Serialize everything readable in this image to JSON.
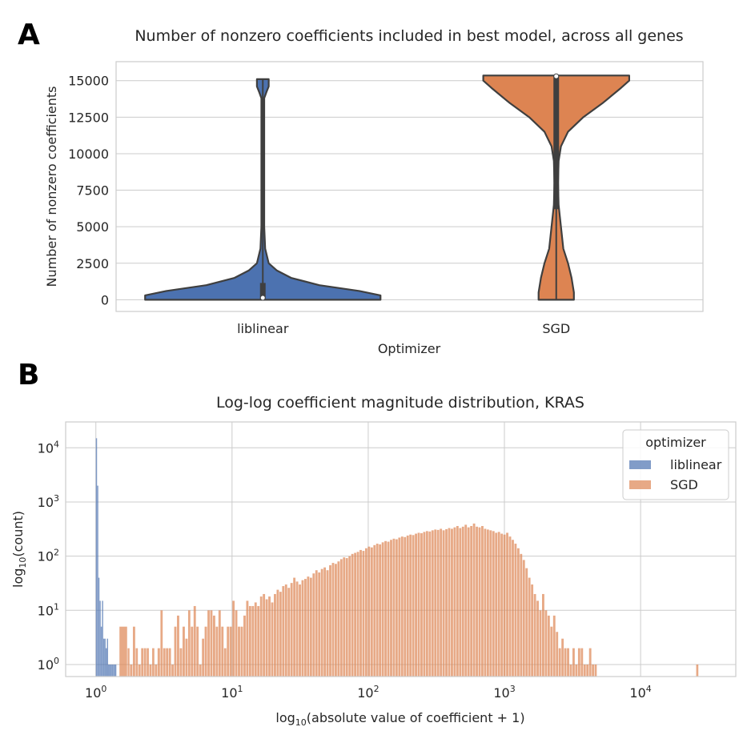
{
  "chart_data": [
    {
      "panel": "A",
      "type": "violin",
      "title": "Number of nonzero coefficients included in best model, across all genes",
      "xlabel": "Optimizer",
      "ylabel": "Number of nonzero coefficients",
      "categories": [
        "liblinear",
        "SGD"
      ],
      "ylim": [
        -800,
        16300
      ],
      "yticks": [
        0,
        2500,
        5000,
        7500,
        10000,
        12500,
        15000
      ],
      "grid": true,
      "colors": {
        "liblinear": "#4c72b0",
        "SGD": "#dd8452"
      },
      "series": [
        {
          "name": "liblinear",
          "range": [
            0,
            15100
          ],
          "median": 130,
          "q1": 60,
          "q3": 1150,
          "density_profile": [
            [
              0,
              1.0
            ],
            [
              300,
              1.0
            ],
            [
              600,
              0.82
            ],
            [
              1000,
              0.48
            ],
            [
              1500,
              0.24
            ],
            [
              2000,
              0.12
            ],
            [
              2500,
              0.05
            ],
            [
              3500,
              0.02
            ],
            [
              5000,
              0.012
            ],
            [
              8000,
              0.012
            ],
            [
              12000,
              0.012
            ],
            [
              13800,
              0.012
            ],
            [
              14200,
              0.03
            ],
            [
              14600,
              0.05
            ],
            [
              15000,
              0.05
            ],
            [
              15100,
              0.05
            ]
          ]
        },
        {
          "name": "SGD",
          "range": [
            0,
            15350
          ],
          "median": 15300,
          "q1": 6200,
          "q3": 15350,
          "density_profile": [
            [
              0,
              0.15
            ],
            [
              500,
              0.15
            ],
            [
              1500,
              0.13
            ],
            [
              2500,
              0.1
            ],
            [
              3500,
              0.06
            ],
            [
              5000,
              0.04
            ],
            [
              6500,
              0.02
            ],
            [
              8000,
              0.015
            ],
            [
              9500,
              0.02
            ],
            [
              10500,
              0.04
            ],
            [
              11500,
              0.1
            ],
            [
              12500,
              0.23
            ],
            [
              13500,
              0.4
            ],
            [
              14500,
              0.55
            ],
            [
              15000,
              0.62
            ],
            [
              15350,
              0.62
            ]
          ]
        }
      ]
    },
    {
      "panel": "B",
      "type": "histogram",
      "title": "Log-log coefficient magnitude distribution, KRAS",
      "xlabel_prefix": "log",
      "xlabel_sub": "10",
      "xlabel_rest": "(absolute value of coefficient + 1)",
      "ylabel_prefix": "log",
      "ylabel_sub": "10",
      "ylabel_rest": "(count)",
      "xscale": "log",
      "yscale": "log",
      "xlim": [
        0.6,
        50000
      ],
      "ylim": [
        0.6,
        30000
      ],
      "xticks": [
        1,
        10,
        100,
        1000,
        10000
      ],
      "yticks": [
        1,
        10,
        100,
        1000,
        10000
      ],
      "tick_base": "10",
      "tick_exponents": [
        "0",
        "1",
        "2",
        "3",
        "4"
      ],
      "grid": true,
      "legend": {
        "title": "optimizer",
        "placement": "top-right"
      },
      "series": [
        {
          "name": "liblinear",
          "color": "#4c72b0",
          "bins": [
            [
              1.0,
              15000
            ],
            [
              1.021,
              2000
            ],
            [
              1.042,
              40
            ],
            [
              1.064,
              15
            ],
            [
              1.086,
              5
            ],
            [
              1.109,
              15
            ],
            [
              1.132,
              3
            ],
            [
              1.156,
              3
            ],
            [
              1.18,
              2
            ],
            [
              1.205,
              3
            ],
            [
              1.23,
              1
            ],
            [
              1.256,
              1
            ],
            [
              1.282,
              1
            ],
            [
              1.309,
              1
            ],
            [
              1.337,
              1
            ],
            [
              1.365,
              1
            ]
          ]
        },
        {
          "name": "SGD",
          "color": "#dd8452",
          "bins": [
            [
              1.49,
              5
            ],
            [
              1.71,
              2
            ],
            [
              1.78,
              1
            ],
            [
              1.87,
              5
            ],
            [
              1.96,
              2
            ],
            [
              2.05,
              1
            ],
            [
              2.15,
              2
            ],
            [
              2.25,
              2
            ],
            [
              2.36,
              2
            ],
            [
              2.47,
              1
            ],
            [
              2.59,
              2
            ],
            [
              2.71,
              1
            ],
            [
              2.84,
              2
            ],
            [
              2.98,
              10
            ],
            [
              3.12,
              2
            ],
            [
              3.27,
              2
            ],
            [
              3.43,
              2
            ],
            [
              3.59,
              1
            ],
            [
              3.76,
              5
            ],
            [
              3.94,
              8
            ],
            [
              4.13,
              2
            ],
            [
              4.33,
              5
            ],
            [
              4.54,
              3
            ],
            [
              4.76,
              10
            ],
            [
              4.98,
              5
            ],
            [
              5.22,
              12
            ],
            [
              5.47,
              5
            ],
            [
              5.73,
              1
            ],
            [
              6.01,
              3
            ],
            [
              6.29,
              5
            ],
            [
              6.6,
              10
            ],
            [
              6.91,
              10
            ],
            [
              7.24,
              8
            ],
            [
              7.59,
              5
            ],
            [
              7.95,
              10
            ],
            [
              8.33,
              5
            ],
            [
              8.73,
              2
            ],
            [
              9.15,
              5
            ],
            [
              9.59,
              5
            ],
            [
              10.05,
              15
            ],
            [
              10.53,
              10
            ],
            [
              11.03,
              5
            ],
            [
              11.56,
              5
            ],
            [
              12.12,
              8
            ],
            [
              12.7,
              15
            ],
            [
              13.31,
              12
            ],
            [
              13.94,
              12
            ],
            [
              14.61,
              14
            ],
            [
              15.31,
              12
            ],
            [
              16.05,
              18
            ],
            [
              16.81,
              20
            ],
            [
              17.62,
              16
            ],
            [
              18.46,
              18
            ],
            [
              19.34,
              14
            ],
            [
              20.27,
              20
            ],
            [
              21.24,
              24
            ],
            [
              22.26,
              22
            ],
            [
              23.32,
              28
            ],
            [
              24.44,
              30
            ],
            [
              25.61,
              26
            ],
            [
              26.83,
              32
            ],
            [
              28.12,
              40
            ],
            [
              29.46,
              34
            ],
            [
              30.87,
              30
            ],
            [
              32.35,
              36
            ],
            [
              33.9,
              38
            ],
            [
              35.52,
              42
            ],
            [
              37.22,
              40
            ],
            [
              39.0,
              48
            ],
            [
              40.87,
              55
            ],
            [
              42.82,
              50
            ],
            [
              44.87,
              58
            ],
            [
              47.02,
              62
            ],
            [
              49.27,
              55
            ],
            [
              51.63,
              68
            ],
            [
              54.1,
              75
            ],
            [
              56.69,
              72
            ],
            [
              59.4,
              80
            ],
            [
              62.24,
              88
            ],
            [
              65.22,
              95
            ],
            [
              68.34,
              92
            ],
            [
              71.61,
              100
            ],
            [
              75.04,
              110
            ],
            [
              78.63,
              115
            ],
            [
              82.4,
              120
            ],
            [
              86.34,
              130
            ],
            [
              90.47,
              125
            ],
            [
              94.8,
              140
            ],
            [
              99.34,
              150
            ],
            [
              104.1,
              145
            ],
            [
              109.1,
              160
            ],
            [
              114.3,
              170
            ],
            [
              119.7,
              165
            ],
            [
              125.5,
              180
            ],
            [
              131.5,
              190
            ],
            [
              137.8,
              185
            ],
            [
              144.4,
              200
            ],
            [
              151.3,
              210
            ],
            [
              158.5,
              205
            ],
            [
              166.1,
              220
            ],
            [
              174.1,
              230
            ],
            [
              182.4,
              225
            ],
            [
              191.1,
              240
            ],
            [
              200.3,
              250
            ],
            [
              209.9,
              245
            ],
            [
              219.9,
              260
            ],
            [
              230.4,
              270
            ],
            [
              241.4,
              265
            ],
            [
              253.0,
              280
            ],
            [
              265.1,
              290
            ],
            [
              277.8,
              285
            ],
            [
              291.1,
              300
            ],
            [
              305.0,
              310
            ],
            [
              319.6,
              305
            ],
            [
              334.9,
              320
            ],
            [
              351.0,
              300
            ],
            [
              367.8,
              315
            ],
            [
              385.4,
              330
            ],
            [
              403.8,
              320
            ],
            [
              423.1,
              340
            ],
            [
              443.4,
              360
            ],
            [
              464.6,
              330
            ],
            [
              486.8,
              350
            ],
            [
              510.1,
              380
            ],
            [
              534.6,
              340
            ],
            [
              560.2,
              360
            ],
            [
              587.0,
              400
            ],
            [
              615.1,
              350
            ],
            [
              644.5,
              340
            ],
            [
              675.4,
              360
            ],
            [
              707.7,
              320
            ],
            [
              741.6,
              310
            ],
            [
              777.1,
              300
            ],
            [
              814.3,
              290
            ],
            [
              853.3,
              270
            ],
            [
              894.1,
              280
            ],
            [
              936.9,
              260
            ],
            [
              981.8,
              250
            ],
            [
              1029,
              270
            ],
            [
              1078,
              230
            ],
            [
              1130,
              200
            ],
            [
              1184,
              170
            ],
            [
              1240,
              140
            ],
            [
              1300,
              110
            ],
            [
              1362,
              85
            ],
            [
              1427,
              60
            ],
            [
              1496,
              40
            ],
            [
              1567,
              30
            ],
            [
              1642,
              20
            ],
            [
              1721,
              15
            ],
            [
              1803,
              10
            ],
            [
              1889,
              20
            ],
            [
              1980,
              10
            ],
            [
              2075,
              8
            ],
            [
              2174,
              5
            ],
            [
              2278,
              8
            ],
            [
              2387,
              4
            ],
            [
              2501,
              2
            ],
            [
              2621,
              3
            ],
            [
              2747,
              2
            ],
            [
              2878,
              2
            ],
            [
              3016,
              1
            ],
            [
              3160,
              2
            ],
            [
              3311,
              1
            ],
            [
              3470,
              2
            ],
            [
              3636,
              2
            ],
            [
              3810,
              1
            ],
            [
              3992,
              1
            ],
            [
              4183,
              2
            ],
            [
              4384,
              1
            ],
            [
              4593,
              1
            ],
            [
              25600,
              1
            ]
          ]
        }
      ]
    }
  ]
}
